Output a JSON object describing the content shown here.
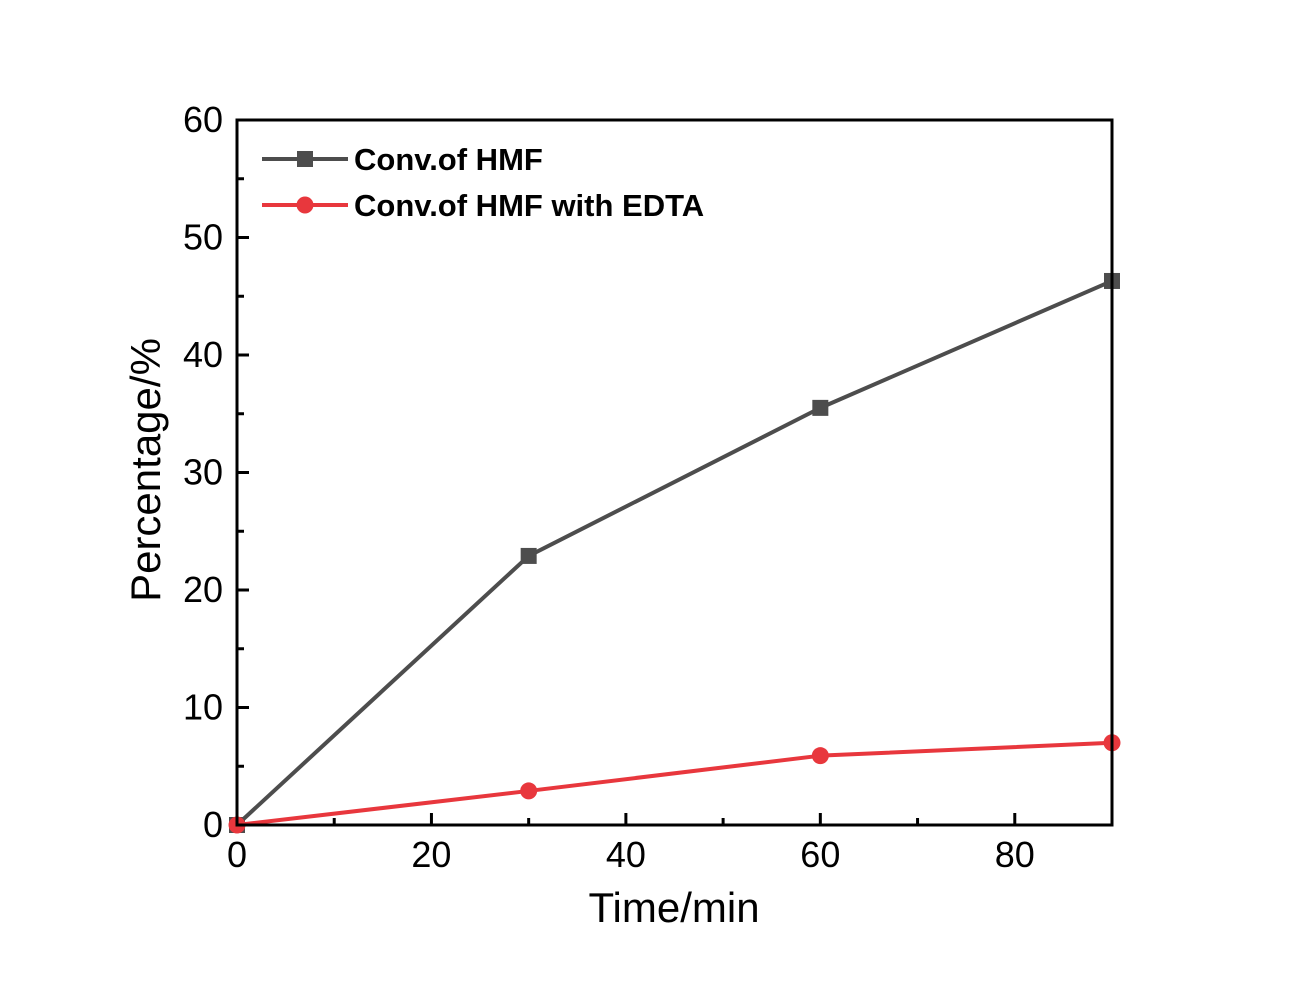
{
  "chart_data": {
    "type": "line",
    "title": "",
    "xlabel": "Time/min",
    "ylabel": "Percentage/%",
    "xlim": [
      0,
      90
    ],
    "ylim": [
      0,
      60
    ],
    "x_ticks": [
      0,
      20,
      40,
      60,
      80
    ],
    "y_ticks": [
      0,
      10,
      20,
      30,
      40,
      50,
      60
    ],
    "grid": false,
    "legend_position": "top-left",
    "series": [
      {
        "name": "Conv.of HMF",
        "color": "#4d4d4d",
        "marker": "square",
        "x": [
          0,
          30,
          60,
          90
        ],
        "y": [
          0,
          22.9,
          35.5,
          46.3
        ]
      },
      {
        "name": "Conv.of HMF with EDTA",
        "color": "#e8373d",
        "marker": "circle",
        "x": [
          0,
          30,
          60,
          90
        ],
        "y": [
          0,
          2.9,
          5.9,
          7.0
        ]
      }
    ]
  }
}
